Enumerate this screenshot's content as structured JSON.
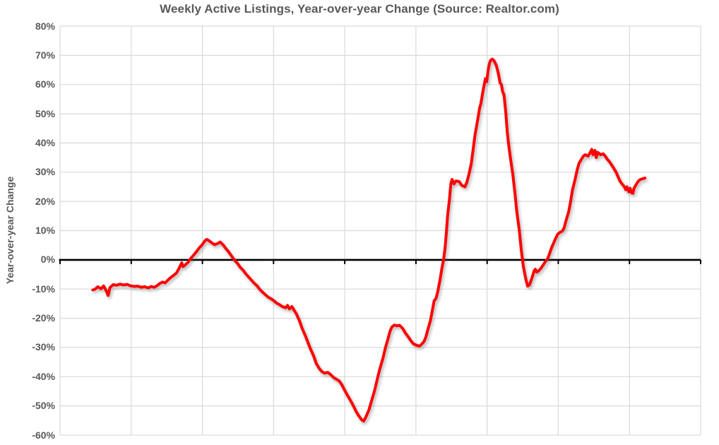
{
  "title": "Weekly Active Listings, Year-over-year Change (Source: Realtor.com)",
  "y_axis": {
    "label": "Year-over-year Change",
    "tick_labels": [
      "80%",
      "70%",
      "60%",
      "50%",
      "40%",
      "30%",
      "20%",
      "10%",
      "0%",
      "-10%",
      "-20%",
      "-30%",
      "-40%",
      "-50%",
      "-60%"
    ],
    "max": 80,
    "min": -60,
    "step": 10
  },
  "x_axis": {
    "tick_labels": [],
    "divisions": 9
  },
  "colors": {
    "line": "#FF0000",
    "grid": "#D9D9D9",
    "zero_axis": "#000000",
    "text": "#595959",
    "background": "#FFFFFF"
  },
  "chart_data": {
    "type": "line",
    "title": "Weekly Active Listings, Year-over-year Change (Source: Realtor.com)",
    "xlabel": "",
    "ylabel": "Year-over-year Change",
    "ylim": [
      -60,
      80
    ],
    "grid": true,
    "legend": false,
    "x_encoding": "fraction of plot width, weekly series, no x tick labels shown",
    "series": [
      {
        "name": "Weekly Active Listings YoY",
        "points": [
          [
            0.051,
            -10.3
          ],
          [
            0.055,
            -10.0
          ],
          [
            0.059,
            -9.2
          ],
          [
            0.064,
            -9.9
          ],
          [
            0.068,
            -8.9
          ],
          [
            0.073,
            -11.0
          ],
          [
            0.075,
            -12.2
          ],
          [
            0.078,
            -9.5
          ],
          [
            0.083,
            -8.5
          ],
          [
            0.088,
            -8.7
          ],
          [
            0.094,
            -8.3
          ],
          [
            0.099,
            -8.6
          ],
          [
            0.105,
            -8.4
          ],
          [
            0.11,
            -8.9
          ],
          [
            0.116,
            -9.1
          ],
          [
            0.121,
            -9.0
          ],
          [
            0.127,
            -9.4
          ],
          [
            0.132,
            -9.2
          ],
          [
            0.138,
            -9.6
          ],
          [
            0.142,
            -9.1
          ],
          [
            0.147,
            -9.4
          ],
          [
            0.151,
            -8.9
          ],
          [
            0.155,
            -8.2
          ],
          [
            0.16,
            -7.6
          ],
          [
            0.164,
            -7.9
          ],
          [
            0.169,
            -6.8
          ],
          [
            0.173,
            -6.0
          ],
          [
            0.178,
            -5.2
          ],
          [
            0.182,
            -4.4
          ],
          [
            0.186,
            -2.8
          ],
          [
            0.19,
            -1.0
          ],
          [
            0.192,
            -2.3
          ],
          [
            0.195,
            -1.8
          ],
          [
            0.2,
            -0.8
          ],
          [
            0.204,
            0.5
          ],
          [
            0.208,
            1.5
          ],
          [
            0.213,
            2.8
          ],
          [
            0.217,
            4.0
          ],
          [
            0.222,
            5.2
          ],
          [
            0.226,
            6.5
          ],
          [
            0.229,
            7.0
          ],
          [
            0.233,
            6.5
          ],
          [
            0.237,
            5.8
          ],
          [
            0.241,
            5.2
          ],
          [
            0.246,
            5.6
          ],
          [
            0.25,
            6.1
          ],
          [
            0.255,
            5.0
          ],
          [
            0.259,
            3.8
          ],
          [
            0.263,
            2.8
          ],
          [
            0.268,
            1.2
          ],
          [
            0.272,
            0.0
          ],
          [
            0.277,
            -1.2
          ],
          [
            0.281,
            -2.5
          ],
          [
            0.286,
            -3.6
          ],
          [
            0.29,
            -4.8
          ],
          [
            0.294,
            -5.8
          ],
          [
            0.299,
            -7.0
          ],
          [
            0.303,
            -8.0
          ],
          [
            0.308,
            -9.0
          ],
          [
            0.312,
            -10.2
          ],
          [
            0.316,
            -11.0
          ],
          [
            0.321,
            -12.0
          ],
          [
            0.325,
            -12.8
          ],
          [
            0.33,
            -13.4
          ],
          [
            0.334,
            -14.0
          ],
          [
            0.338,
            -14.8
          ],
          [
            0.343,
            -15.4
          ],
          [
            0.347,
            -16.0
          ],
          [
            0.352,
            -16.4
          ],
          [
            0.355,
            -15.6
          ],
          [
            0.358,
            -16.8
          ],
          [
            0.362,
            -16.0
          ],
          [
            0.366,
            -17.5
          ],
          [
            0.369,
            -18.5
          ],
          [
            0.374,
            -21.0
          ],
          [
            0.378,
            -23.5
          ],
          [
            0.383,
            -26.0
          ],
          [
            0.387,
            -28.3
          ],
          [
            0.391,
            -30.5
          ],
          [
            0.396,
            -33.0
          ],
          [
            0.4,
            -35.5
          ],
          [
            0.405,
            -37.3
          ],
          [
            0.409,
            -38.3
          ],
          [
            0.413,
            -38.8
          ],
          [
            0.418,
            -38.5
          ],
          [
            0.422,
            -39.2
          ],
          [
            0.427,
            -40.3
          ],
          [
            0.431,
            -40.8
          ],
          [
            0.436,
            -41.5
          ],
          [
            0.44,
            -42.8
          ],
          [
            0.444,
            -44.5
          ],
          [
            0.449,
            -46.5
          ],
          [
            0.453,
            -48.0
          ],
          [
            0.458,
            -50.0
          ],
          [
            0.462,
            -51.8
          ],
          [
            0.466,
            -53.3
          ],
          [
            0.471,
            -54.8
          ],
          [
            0.474,
            -55.2
          ],
          [
            0.477,
            -54.0
          ],
          [
            0.482,
            -51.5
          ],
          [
            0.486,
            -48.5
          ],
          [
            0.491,
            -44.8
          ],
          [
            0.495,
            -41.0
          ],
          [
            0.499,
            -37.5
          ],
          [
            0.504,
            -33.8
          ],
          [
            0.508,
            -30.0
          ],
          [
            0.512,
            -27.0
          ],
          [
            0.515,
            -24.5
          ],
          [
            0.518,
            -23.0
          ],
          [
            0.522,
            -22.3
          ],
          [
            0.526,
            -22.6
          ],
          [
            0.53,
            -22.4
          ],
          [
            0.535,
            -23.5
          ],
          [
            0.539,
            -25.0
          ],
          [
            0.544,
            -26.5
          ],
          [
            0.548,
            -27.8
          ],
          [
            0.552,
            -28.8
          ],
          [
            0.557,
            -29.3
          ],
          [
            0.561,
            -29.5
          ],
          [
            0.564,
            -29.0
          ],
          [
            0.568,
            -28.0
          ],
          [
            0.571,
            -26.5
          ],
          [
            0.574,
            -24.0
          ],
          [
            0.578,
            -21.0
          ],
          [
            0.581,
            -17.5
          ],
          [
            0.584,
            -14.0
          ],
          [
            0.587,
            -13.2
          ],
          [
            0.59,
            -10.5
          ],
          [
            0.593,
            -7.0
          ],
          [
            0.596,
            -3.0
          ],
          [
            0.599,
            0.5
          ],
          [
            0.601,
            4.0
          ],
          [
            0.603,
            9.0
          ],
          [
            0.605,
            15.0
          ],
          [
            0.608,
            21.0
          ],
          [
            0.61,
            26.0
          ],
          [
            0.612,
            27.5
          ],
          [
            0.615,
            26.0
          ],
          [
            0.618,
            27.0
          ],
          [
            0.623,
            26.8
          ],
          [
            0.627,
            25.5
          ],
          [
            0.632,
            25.0
          ],
          [
            0.635,
            26.5
          ],
          [
            0.638,
            29.0
          ],
          [
            0.642,
            33.0
          ],
          [
            0.645,
            38.0
          ],
          [
            0.648,
            43.0
          ],
          [
            0.652,
            48.0
          ],
          [
            0.655,
            52.0
          ],
          [
            0.657,
            53.5
          ],
          [
            0.66,
            57.5
          ],
          [
            0.664,
            62.0
          ],
          [
            0.666,
            61.0
          ],
          [
            0.668,
            64.5
          ],
          [
            0.67,
            67.0
          ],
          [
            0.672,
            68.3
          ],
          [
            0.675,
            68.7
          ],
          [
            0.678,
            68.0
          ],
          [
            0.681,
            66.5
          ],
          [
            0.684,
            64.0
          ],
          [
            0.687,
            60.5
          ],
          [
            0.689,
            60.0
          ],
          [
            0.691,
            57.5
          ],
          [
            0.693,
            56.5
          ],
          [
            0.696,
            50.0
          ],
          [
            0.698,
            44.0
          ],
          [
            0.7,
            40.0
          ],
          [
            0.703,
            35.0
          ],
          [
            0.707,
            29.0
          ],
          [
            0.71,
            23.0
          ],
          [
            0.713,
            16.5
          ],
          [
            0.717,
            10.0
          ],
          [
            0.72,
            3.5
          ],
          [
            0.723,
            -2.0
          ],
          [
            0.727,
            -6.5
          ],
          [
            0.73,
            -9.0
          ],
          [
            0.733,
            -8.5
          ],
          [
            0.737,
            -6.0
          ],
          [
            0.74,
            -3.8
          ],
          [
            0.742,
            -3.2
          ],
          [
            0.744,
            -4.2
          ],
          [
            0.747,
            -3.8
          ],
          [
            0.751,
            -2.8
          ],
          [
            0.754,
            -1.8
          ],
          [
            0.757,
            -0.8
          ],
          [
            0.761,
            0.3
          ],
          [
            0.764,
            2.0
          ],
          [
            0.767,
            4.0
          ],
          [
            0.771,
            6.0
          ],
          [
            0.774,
            7.5
          ],
          [
            0.777,
            8.8
          ],
          [
            0.781,
            9.5
          ],
          [
            0.784,
            9.8
          ],
          [
            0.787,
            11.0
          ],
          [
            0.79,
            13.5
          ],
          [
            0.794,
            16.5
          ],
          [
            0.797,
            20.0
          ],
          [
            0.8,
            24.0
          ],
          [
            0.804,
            27.5
          ],
          [
            0.807,
            30.5
          ],
          [
            0.81,
            33.0
          ],
          [
            0.814,
            34.5
          ],
          [
            0.817,
            35.5
          ],
          [
            0.82,
            36.0
          ],
          [
            0.824,
            35.5
          ],
          [
            0.827,
            36.5
          ],
          [
            0.83,
            37.8
          ],
          [
            0.832,
            36.0
          ],
          [
            0.835,
            37.5
          ],
          [
            0.837,
            35.0
          ],
          [
            0.839,
            36.8
          ],
          [
            0.841,
            36.5
          ],
          [
            0.844,
            36.0
          ],
          [
            0.848,
            36.3
          ],
          [
            0.851,
            35.5
          ],
          [
            0.854,
            34.5
          ],
          [
            0.858,
            33.5
          ],
          [
            0.861,
            32.5
          ],
          [
            0.864,
            31.5
          ],
          [
            0.868,
            30.0
          ],
          [
            0.871,
            28.5
          ],
          [
            0.874,
            27.0
          ],
          [
            0.878,
            25.8
          ],
          [
            0.881,
            25.0
          ],
          [
            0.883,
            24.0
          ],
          [
            0.885,
            25.0
          ],
          [
            0.888,
            23.3
          ],
          [
            0.89,
            24.5
          ],
          [
            0.892,
            23.0
          ],
          [
            0.894,
            22.8
          ],
          [
            0.896,
            24.5
          ],
          [
            0.9,
            26.0
          ],
          [
            0.903,
            27.0
          ],
          [
            0.906,
            27.5
          ],
          [
            0.91,
            27.8
          ],
          [
            0.913,
            28.0
          ]
        ]
      }
    ]
  }
}
